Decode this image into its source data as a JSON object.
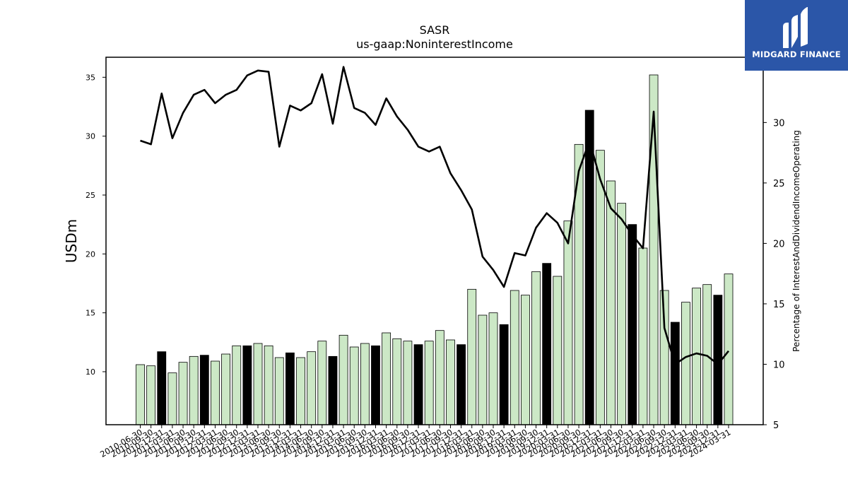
{
  "chart_data": {
    "type": "bar+line",
    "title": "SASR",
    "subtitle": "us-gaap:NoninterestIncome",
    "ylabel_left": "USDm",
    "ylabel_right": "Percentage of InterestAndDividendIncomeOperating",
    "ylim_left": [
      5.5,
      36.7
    ],
    "ylim_right": [
      5,
      35.4
    ],
    "yticks_left": [
      "10",
      "15",
      "20",
      "25",
      "30",
      "35"
    ],
    "yticks_right": [
      "5",
      "10",
      "15",
      "20",
      "25",
      "30"
    ],
    "categories": [
      "2010-06-30",
      "2010-09-30",
      "2010-12-31",
      "2011-03-31",
      "2011-06-30",
      "2011-09-30",
      "2011-12-31",
      "2012-03-31",
      "2012-06-30",
      "2012-09-30",
      "2012-12-31",
      "2013-03-31",
      "2013-06-30",
      "2013-09-30",
      "2013-12-31",
      "2014-03-31",
      "2014-06-30",
      "2014-09-30",
      "2014-12-31",
      "2015-03-31",
      "2015-06-30",
      "2015-09-30",
      "2015-12-31",
      "2016-03-31",
      "2016-06-30",
      "2016-09-30",
      "2016-12-31",
      "2017-03-31",
      "2017-06-30",
      "2017-09-30",
      "2017-12-31",
      "2018-03-31",
      "2018-06-30",
      "2018-09-30",
      "2018-12-31",
      "2019-03-31",
      "2019-06-30",
      "2019-09-30",
      "2019-12-31",
      "2020-03-31",
      "2020-06-30",
      "2020-09-30",
      "2020-12-31",
      "2021-03-31",
      "2021-06-30",
      "2021-09-30",
      "2021-12-31",
      "2022-03-31",
      "2022-06-30",
      "2022-09-30",
      "2022-12-31",
      "2023-03-31",
      "2023-06-30",
      "2023-09-30",
      "2023-12-31",
      "2024-03-31"
    ],
    "series": [
      {
        "type": "bar",
        "values": [
          10.6,
          10.5,
          11.7,
          9.9,
          10.8,
          11.3,
          11.4,
          10.9,
          11.5,
          12.2,
          12.2,
          12.4,
          12.2,
          11.2,
          11.6,
          11.2,
          11.7,
          12.6,
          11.3,
          13.1,
          12.1,
          12.4,
          12.2,
          13.3,
          12.8,
          12.6,
          12.3,
          12.6,
          13.5,
          12.7,
          12.3,
          17.0,
          14.8,
          15.0,
          14.0,
          16.9,
          16.5,
          18.5,
          19.2,
          18.1,
          22.8,
          29.3,
          32.2,
          28.8,
          26.2,
          24.3,
          22.5,
          20.5,
          35.2,
          16.9,
          14.2,
          15.9,
          17.1,
          17.4,
          16.5,
          18.3
        ],
        "q4_highlight": true
      },
      {
        "type": "line",
        "values": [
          28.5,
          28.2,
          32.4,
          28.7,
          30.8,
          32.3,
          32.7,
          31.6,
          32.3,
          32.7,
          33.9,
          34.3,
          34.2,
          28.0,
          31.4,
          31.0,
          31.6,
          34.0,
          29.9,
          34.6,
          31.2,
          30.8,
          29.8,
          32.0,
          30.5,
          29.4,
          28.0,
          27.6,
          28.0,
          25.8,
          24.4,
          22.8,
          18.9,
          17.8,
          16.4,
          19.2,
          19.0,
          21.3,
          22.5,
          21.7,
          20.0,
          26.0,
          28.5,
          25.3,
          22.9,
          22.0,
          20.7,
          19.6,
          30.9,
          13.0,
          10.0,
          10.6,
          10.9,
          10.7,
          10.0,
          11.1
        ]
      }
    ],
    "colors": {
      "bar_fill": "#cce8c6",
      "bar_highlight": "#000000",
      "bar_edge": "#000000",
      "line": "#000000",
      "logo_bg": "#2b56a8"
    },
    "grid": false,
    "legend": "none"
  },
  "logo": {
    "text": "MIDGARD FINANCE",
    "icon": "midgard-logo-icon"
  }
}
